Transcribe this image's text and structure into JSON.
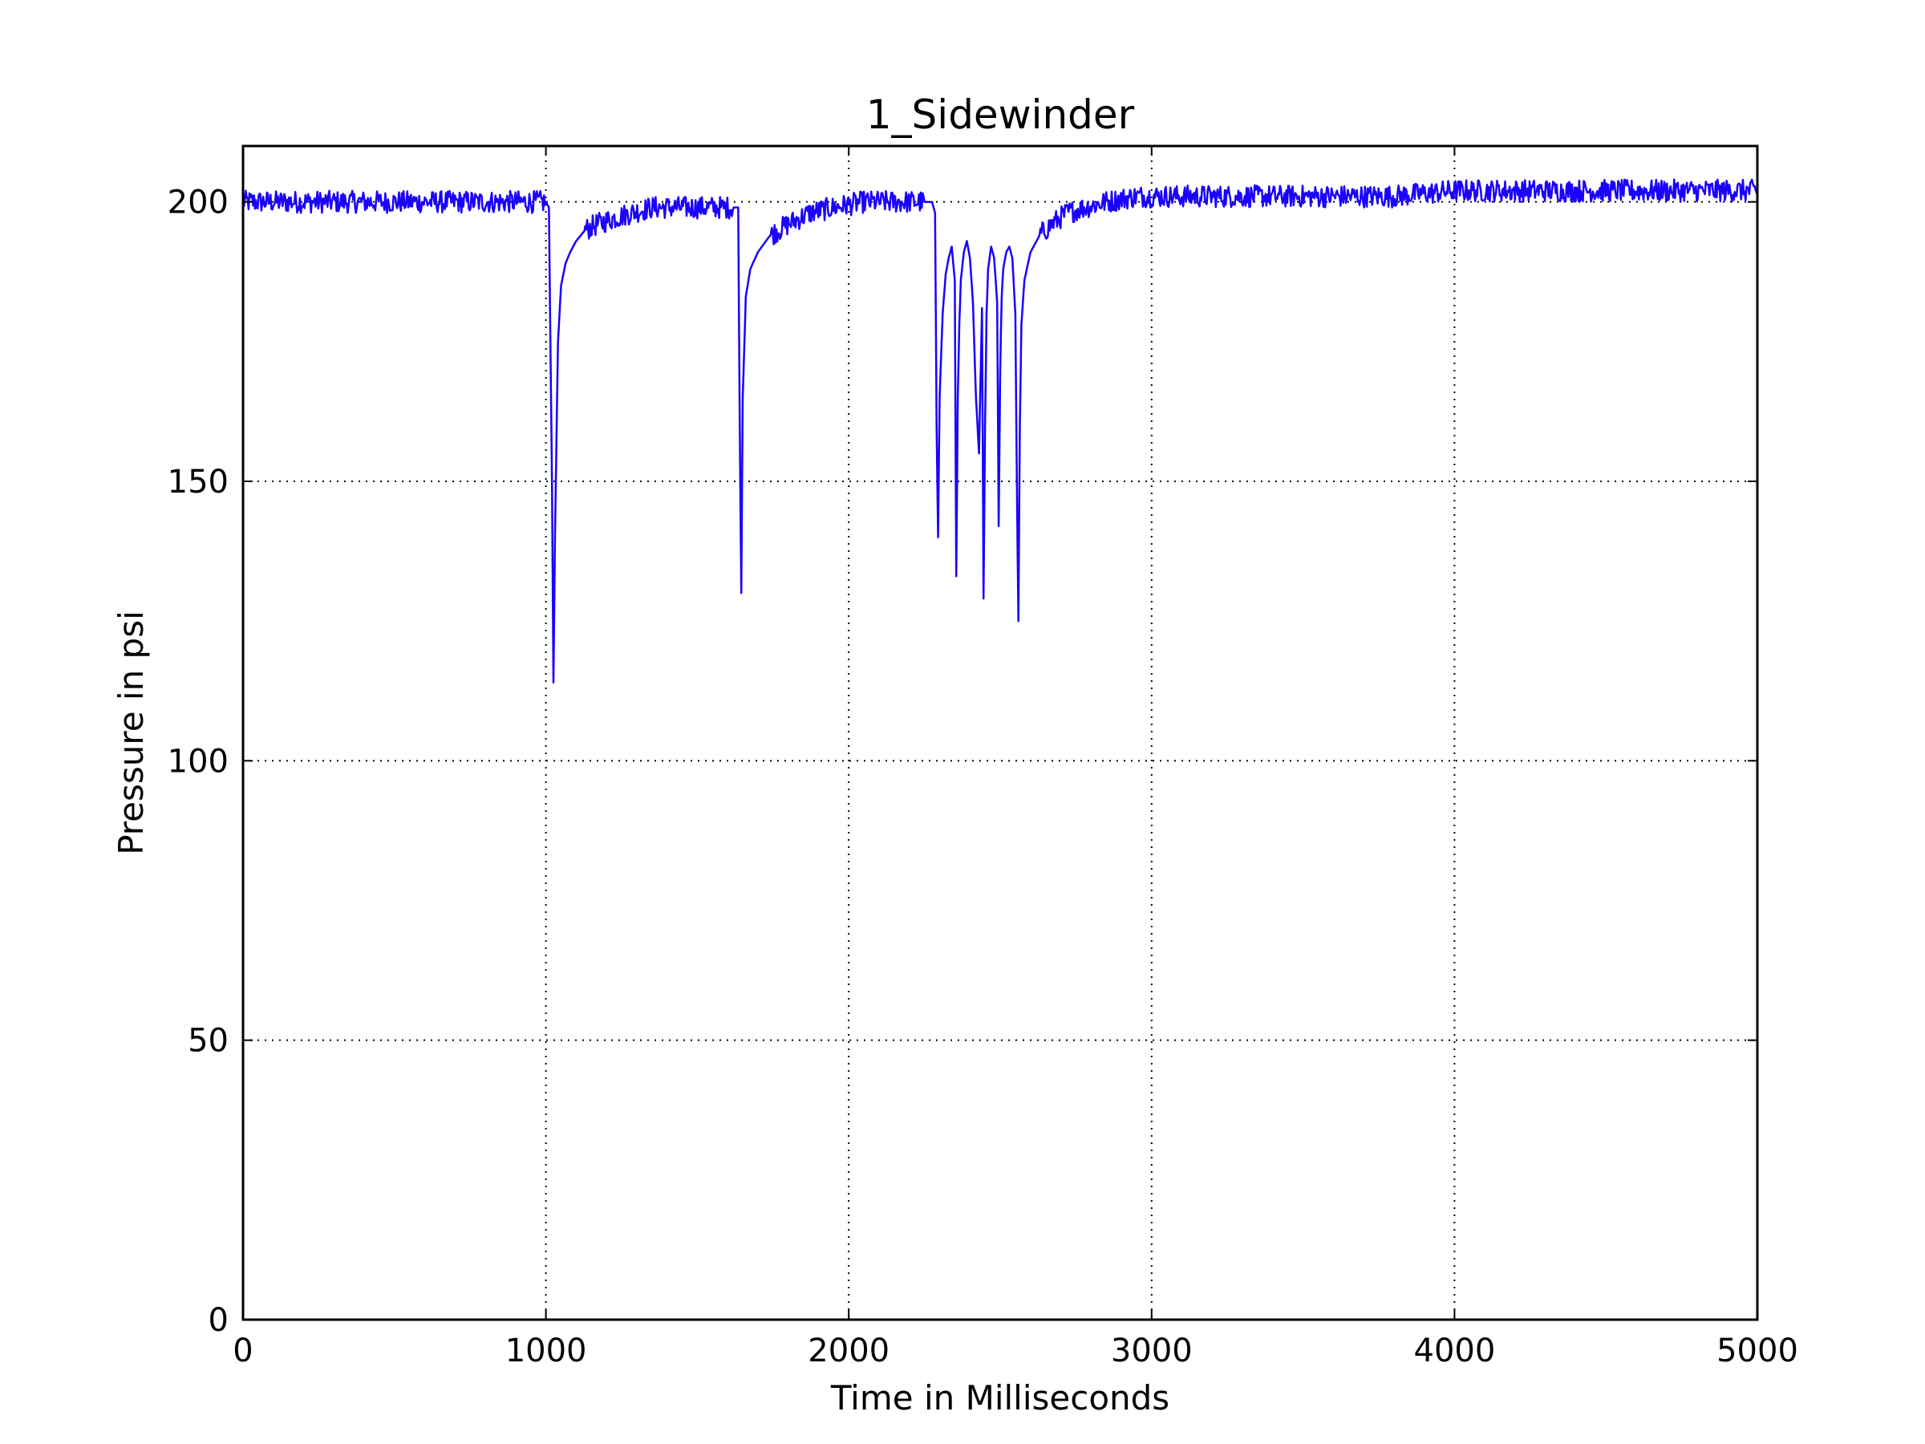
{
  "chart_data": {
    "type": "line",
    "title": "1_Sidewinder",
    "xlabel": "Time in Milliseconds",
    "ylabel": "Pressure in psi",
    "xlim": [
      0,
      5000
    ],
    "ylim": [
      0,
      210
    ],
    "xticks": [
      0,
      1000,
      2000,
      3000,
      4000,
      5000
    ],
    "yticks": [
      0,
      50,
      100,
      150,
      200
    ],
    "grid": true,
    "legend": "none",
    "series": [
      {
        "color": "#1a00ff",
        "x": [
          0,
          100,
          200,
          300,
          400,
          500,
          600,
          700,
          800,
          900,
          1000,
          1010,
          1020,
          1025,
          1030,
          1040,
          1050,
          1065,
          1080,
          1100,
          1130,
          1170,
          1220,
          1280,
          1350,
          1420,
          1500,
          1560,
          1620,
          1635,
          1640,
          1645,
          1650,
          1660,
          1675,
          1700,
          1740,
          1800,
          1870,
          1950,
          2050,
          2150,
          2250,
          2275,
          2285,
          2290,
          2295,
          2300,
          2310,
          2320,
          2330,
          2340,
          2350,
          2355,
          2360,
          2365,
          2370,
          2380,
          2390,
          2400,
          2410,
          2420,
          2430,
          2440,
          2445,
          2450,
          2455,
          2460,
          2470,
          2480,
          2490,
          2495,
          2500,
          2505,
          2510,
          2520,
          2530,
          2540,
          2550,
          2555,
          2560,
          2565,
          2570,
          2580,
          2600,
          2630,
          2670,
          2720,
          2780,
          2850,
          2950,
          3050,
          3200,
          3400,
          3600,
          3800,
          4000,
          4200,
          4400,
          4600,
          4800,
          5000
        ],
        "y": [
          200,
          200,
          200,
          200,
          200,
          200,
          200,
          200,
          200,
          200,
          200,
          199,
          150,
          114,
          140,
          175,
          185,
          189,
          191,
          193,
          195,
          196,
          197,
          198,
          199,
          199,
          199,
          199,
          199,
          199,
          160,
          130,
          165,
          183,
          188,
          191,
          194,
          196,
          198,
          199,
          200,
          200,
          200,
          200,
          198,
          160,
          140,
          165,
          180,
          187,
          190,
          192,
          186,
          133,
          165,
          178,
          186,
          191,
          193,
          190,
          182,
          165,
          155,
          181,
          129,
          160,
          180,
          188,
          192,
          190,
          182,
          142,
          170,
          183,
          188,
          191,
          192,
          190,
          180,
          150,
          125,
          160,
          178,
          186,
          191,
          194,
          196,
          198,
          199,
          200,
          201,
          201,
          201,
          201,
          201,
          201,
          202,
          202,
          202,
          202,
          202,
          202
        ]
      }
    ]
  }
}
